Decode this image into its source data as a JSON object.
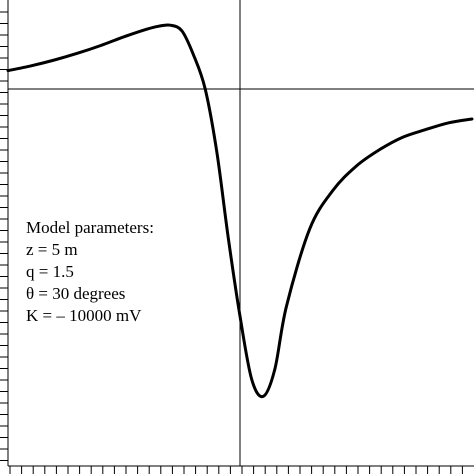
{
  "chart_data": {
    "type": "line",
    "title": "",
    "xlabel": "",
    "ylabel": "",
    "xlim": [
      -20,
      20
    ],
    "ylim": [
      -390,
      90
    ],
    "grid": false,
    "legend": "none",
    "series": [
      {
        "points": [
          [
            -20,
            19
          ],
          [
            -18,
            24
          ],
          [
            -16,
            30
          ],
          [
            -14,
            37
          ],
          [
            -12,
            45
          ],
          [
            -10,
            54
          ],
          [
            -8,
            62
          ],
          [
            -7,
            65
          ],
          [
            -6,
            66
          ],
          [
            -5,
            60
          ],
          [
            -4,
            35
          ],
          [
            -3,
            0
          ],
          [
            -2,
            -65
          ],
          [
            -1,
            -155
          ],
          [
            0,
            -235
          ],
          [
            1,
            -300
          ],
          [
            2,
            -318
          ],
          [
            3,
            -290
          ],
          [
            4,
            -225
          ],
          [
            6,
            -145
          ],
          [
            8,
            -105
          ],
          [
            10,
            -80
          ],
          [
            12,
            -63
          ],
          [
            14,
            -50
          ],
          [
            16,
            -42
          ],
          [
            18,
            -35
          ],
          [
            20,
            -31
          ]
        ]
      }
    ],
    "annotation": {
      "heading": "Model parameters:",
      "lines": [
        "z = 5 m",
        "q = 1.5",
        "θ = 30 degrees",
        "K = – 10000 mV"
      ]
    },
    "colors": {
      "curve": "#000000",
      "axes": "#000000",
      "background": "#ffffff"
    }
  }
}
